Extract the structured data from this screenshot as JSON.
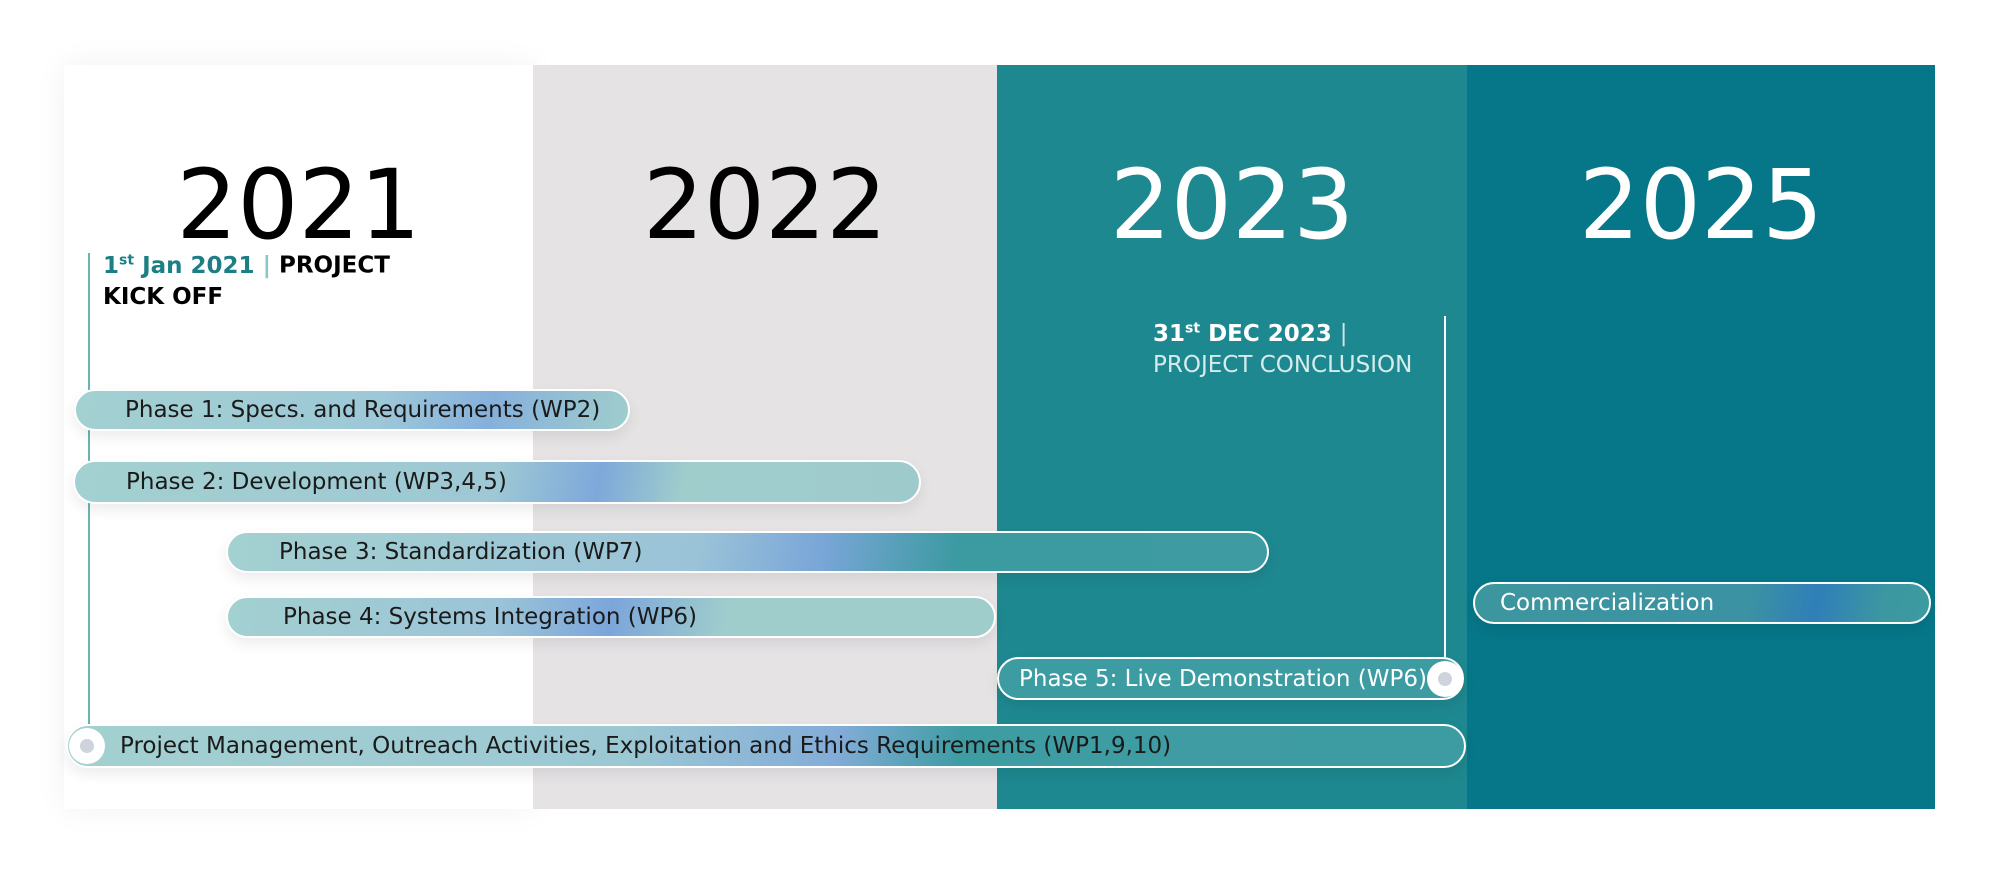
{
  "years": [
    "2021",
    "2022",
    "2023",
    "2025"
  ],
  "milestones": [
    {
      "day": "1",
      "ordinal": "st",
      "date": "Jan 2021",
      "separator": "|",
      "label": "PROJECT KICK OFF"
    },
    {
      "day": "31",
      "ordinal": "st",
      "date": "DEC 2023",
      "separator": "|",
      "label": "PROJECT CONCLUSION"
    }
  ],
  "phases": [
    "Phase 1: Specs. and Requirements (WP2)",
    "Phase 2: Development (WP3,4,5)",
    "Phase 3: Standardization (WP7)",
    "Phase 4: Systems Integration (WP6)",
    "Phase 5: Live Demonstration (WP6)",
    "Project Management, Outreach Activities, Exploitation and Ethics Requirements (WP1,9,10)",
    "Commercialization"
  ]
}
